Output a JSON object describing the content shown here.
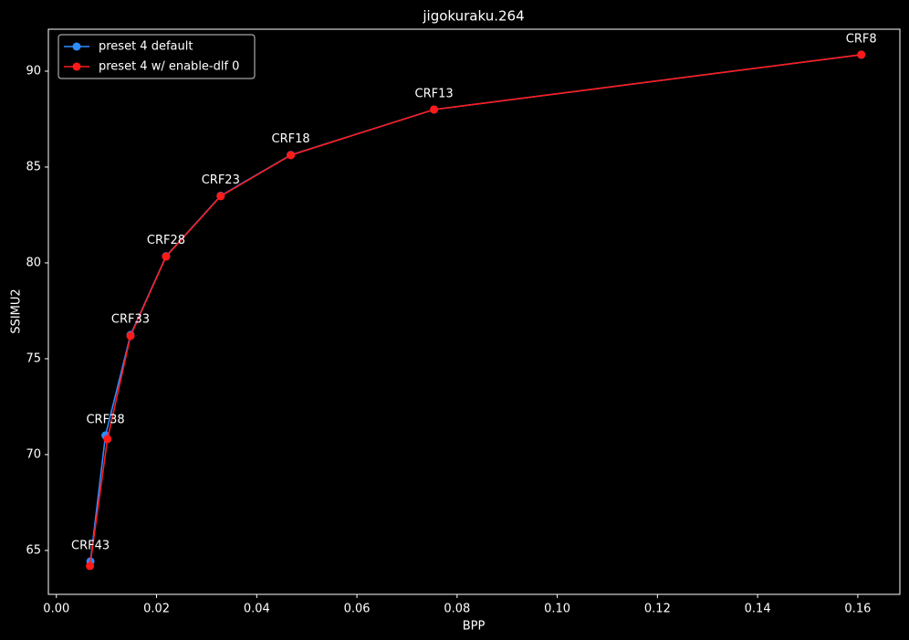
{
  "chart_data": {
    "type": "line",
    "title": "jigokuraku.264",
    "x_label": "BPP",
    "y_label": "SSIMU2",
    "legend": "upper left",
    "series": [
      {
        "name": "preset 4 default",
        "color": "#2f8cff",
        "x": [
          0.0068,
          0.0098,
          0.0148,
          0.0219,
          0.0328,
          0.0468,
          0.0754,
          0.1607
        ],
        "values": [
          64.43,
          71.0,
          76.24,
          80.35,
          83.5,
          85.63,
          88.0,
          90.86
        ]
      },
      {
        "name": "preset 4 w/ enable-dlf 0",
        "color": "#ff1a1a",
        "x": [
          0.0067,
          0.0102,
          0.0148,
          0.0219,
          0.0328,
          0.0468,
          0.0754,
          0.1607
        ],
        "values": [
          64.19,
          70.81,
          76.19,
          80.33,
          83.48,
          85.62,
          88.0,
          90.86
        ]
      }
    ],
    "point_labels": [
      "CRF43",
      "CRF38",
      "CRF33",
      "CRF28",
      "CRF23",
      "CRF18",
      "CRF13",
      "CRF8"
    ],
    "xlim": [
      -0.0016,
      0.1684
    ],
    "ylim": [
      62.71,
      92.19
    ],
    "xticks": [
      {
        "value": 0,
        "label": "0.00"
      },
      {
        "value": 0.02,
        "label": "0.02"
      },
      {
        "value": 0.04,
        "label": "0.04"
      },
      {
        "value": 0.06,
        "label": "0.06"
      },
      {
        "value": 0.08,
        "label": "0.08"
      },
      {
        "value": 0.1,
        "label": "0.10"
      },
      {
        "value": 0.12,
        "label": "0.12"
      },
      {
        "value": 0.14,
        "label": "0.14"
      },
      {
        "value": 0.16,
        "label": "0.16"
      }
    ],
    "yticks": [
      65,
      70,
      75,
      80,
      85,
      90
    ]
  }
}
